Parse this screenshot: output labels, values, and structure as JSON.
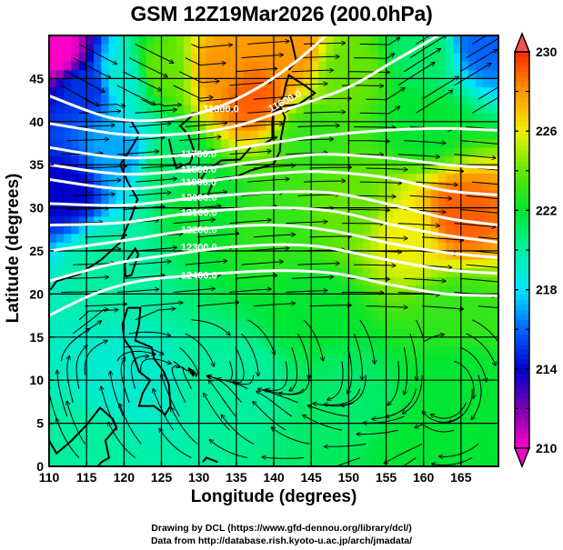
{
  "chart_data": {
    "type": "heatmap",
    "title": "GSM 12Z19Mar2026 (200.0hPa)",
    "xlabel": "Longitude (degrees)",
    "ylabel": "Latitude  (degrees)",
    "xlim": [
      110,
      170
    ],
    "ylim": [
      0,
      50
    ],
    "x_ticks": [
      110,
      115,
      120,
      125,
      130,
      135,
      140,
      145,
      150,
      155,
      160,
      165
    ],
    "y_ticks": [
      0,
      5,
      10,
      15,
      20,
      25,
      30,
      35,
      40,
      45
    ],
    "grid": true,
    "colorbar": {
      "placement": "right",
      "range": [
        210,
        230
      ],
      "tick_labels": [
        230,
        226,
        222,
        218,
        214,
        210
      ],
      "extend": "both",
      "colors": {
        "210": "#ff00c8",
        "212": "#7a00b4",
        "214": "#0000c8",
        "216": "#0064ff",
        "218": "#00e6ff",
        "220": "#00f0a0",
        "222": "#00e632",
        "224": "#64e600",
        "226": "#f0f000",
        "228": "#ff9600",
        "230": "#ff2800"
      },
      "over_color": "#ff5050",
      "under_color": "#ff00c8"
    },
    "shaded_field": {
      "description": "temperature-like scalar field (colorbar units)",
      "samples": [
        {
          "lon": 111,
          "lat": 48,
          "value": 210
        },
        {
          "lon": 115,
          "lat": 44,
          "value": 215
        },
        {
          "lon": 112,
          "lat": 32,
          "value": 214
        },
        {
          "lon": 120,
          "lat": 36,
          "value": 217
        },
        {
          "lon": 120,
          "lat": 45,
          "value": 219
        },
        {
          "lon": 125,
          "lat": 46,
          "value": 224
        },
        {
          "lon": 133,
          "lat": 46,
          "value": 228
        },
        {
          "lon": 137,
          "lat": 43,
          "value": 229
        },
        {
          "lon": 142,
          "lat": 48,
          "value": 228
        },
        {
          "lon": 150,
          "lat": 46,
          "value": 224
        },
        {
          "lon": 160,
          "lat": 48,
          "value": 221
        },
        {
          "lon": 168,
          "lat": 49,
          "value": 216
        },
        {
          "lon": 145,
          "lat": 38,
          "value": 223
        },
        {
          "lon": 160,
          "lat": 40,
          "value": 222
        },
        {
          "lon": 165,
          "lat": 29,
          "value": 229
        },
        {
          "lon": 158,
          "lat": 27,
          "value": 226
        },
        {
          "lon": 150,
          "lat": 30,
          "value": 224
        },
        {
          "lon": 140,
          "lat": 28,
          "value": 223
        },
        {
          "lon": 130,
          "lat": 30,
          "value": 222
        },
        {
          "lon": 125,
          "lat": 35,
          "value": 221
        },
        {
          "lon": 118,
          "lat": 24,
          "value": 220
        },
        {
          "lon": 120,
          "lat": 10,
          "value": 219
        },
        {
          "lon": 135,
          "lat": 10,
          "value": 220
        },
        {
          "lon": 150,
          "lat": 8,
          "value": 221
        },
        {
          "lon": 165,
          "lat": 10,
          "value": 222
        },
        {
          "lon": 145,
          "lat": 18,
          "value": 222
        },
        {
          "lon": 165,
          "lat": 18,
          "value": 223
        },
        {
          "lon": 115,
          "lat": 2,
          "value": 220
        },
        {
          "lon": 160,
          "lat": 2,
          "value": 222
        }
      ]
    },
    "contours": {
      "color": "#ffffff",
      "levels": [
        {
          "value": 11500.0,
          "label": "11500.0",
          "points": [
            [
              110,
              43
            ],
            [
              118,
              40.5
            ],
            [
              125,
              40.2
            ],
            [
              132,
              41.5
            ],
            [
              138,
              44
            ],
            [
              143,
              47
            ],
            [
              147,
              50
            ]
          ]
        },
        {
          "value": 11600.0,
          "label": "11600.0",
          "points": [
            [
              110,
              39.8
            ],
            [
              120,
              38.5
            ],
            [
              128,
              38.6
            ],
            [
              135,
              39.5
            ],
            [
              142,
              41.5
            ],
            [
              150,
              44
            ],
            [
              156,
              47
            ],
            [
              162,
              50
            ]
          ]
        },
        {
          "value": 11700.0,
          "label": "11700.0",
          "points": [
            [
              110,
              37
            ],
            [
              120,
              35.8
            ],
            [
              130,
              36.3
            ],
            [
              138,
              37.3
            ],
            [
              146,
              38.3
            ],
            [
              155,
              39
            ],
            [
              163,
              39.2
            ],
            [
              170,
              39
            ]
          ]
        },
        {
          "value": 11800.0,
          "label": "11800.0",
          "points": [
            [
              110,
              35
            ],
            [
              120,
              33.9
            ],
            [
              130,
              34.5
            ],
            [
              138,
              35.4
            ],
            [
              146,
              36.2
            ],
            [
              155,
              35.8
            ],
            [
              163,
              35
            ],
            [
              170,
              34.6
            ]
          ]
        },
        {
          "value": 11900.0,
          "label": "11900.0",
          "points": [
            [
              110,
              33.3
            ],
            [
              120,
              32.2
            ],
            [
              130,
              33
            ],
            [
              138,
              33.8
            ],
            [
              146,
              34.2
            ],
            [
              155,
              33.5
            ],
            [
              163,
              32
            ],
            [
              170,
              31.5
            ]
          ]
        },
        {
          "value": 12000.0,
          "label": "12000.0",
          "points": [
            [
              110,
              30.5
            ],
            [
              120,
              30.3
            ],
            [
              130,
              31.2
            ],
            [
              140,
              31.8
            ],
            [
              148,
              31.7
            ],
            [
              156,
              30.3
            ],
            [
              163,
              28.8
            ],
            [
              170,
              28
            ]
          ]
        },
        {
          "value": 12100.0,
          "label": "12100.0",
          "points": [
            [
              110,
              28
            ],
            [
              120,
              28.3
            ],
            [
              130,
              29.5
            ],
            [
              140,
              30
            ],
            [
              148,
              29.6
            ],
            [
              156,
              28
            ],
            [
              163,
              26.8
            ],
            [
              170,
              26
            ]
          ]
        },
        {
          "value": 12200.0,
          "label": "12200.0",
          "points": [
            [
              110,
              25
            ],
            [
              120,
              26.2
            ],
            [
              130,
              27.5
            ],
            [
              140,
              28
            ],
            [
              148,
              27.3
            ],
            [
              156,
              25.8
            ],
            [
              163,
              24.8
            ],
            [
              170,
              24.2
            ]
          ]
        },
        {
          "value": 12300.0,
          "label": "12300.0",
          "points": [
            [
              110,
              21.5
            ],
            [
              118,
              23.4
            ],
            [
              125,
              24.4
            ],
            [
              135,
              25.5
            ],
            [
              145,
              25.6
            ],
            [
              155,
              24
            ],
            [
              163,
              22.8
            ],
            [
              170,
              22.4
            ]
          ]
        },
        {
          "value": 12400.0,
          "label": "12400.0",
          "points": [
            [
              110,
              17.5
            ],
            [
              116,
              20
            ],
            [
              122,
              21.5
            ],
            [
              130,
              22.2
            ],
            [
              140,
              22.7
            ],
            [
              148,
              22.4
            ],
            [
              156,
              21
            ],
            [
              163,
              20
            ],
            [
              170,
              19.8
            ]
          ]
        }
      ],
      "visible_labels": [
        "11500.0",
        "11600.0",
        "11700.0",
        "11800.0",
        "11900.0",
        "12000.0",
        "12100.0",
        "12200.0",
        "12300.0",
        "12400.0"
      ]
    },
    "vector_field": {
      "type": "streamlines",
      "color": "#000000",
      "description": "westerly jet 20-48N, cyclonic/anticyclonic swirls south of 15N"
    }
  },
  "footer": {
    "credit_line1": "Drawing by DCL (https://www.gfd-dennou.org/library/dcl/)",
    "credit_line2": "Data from http://database.rish.kyoto-u.ac.jp/arch/jmadata/"
  }
}
